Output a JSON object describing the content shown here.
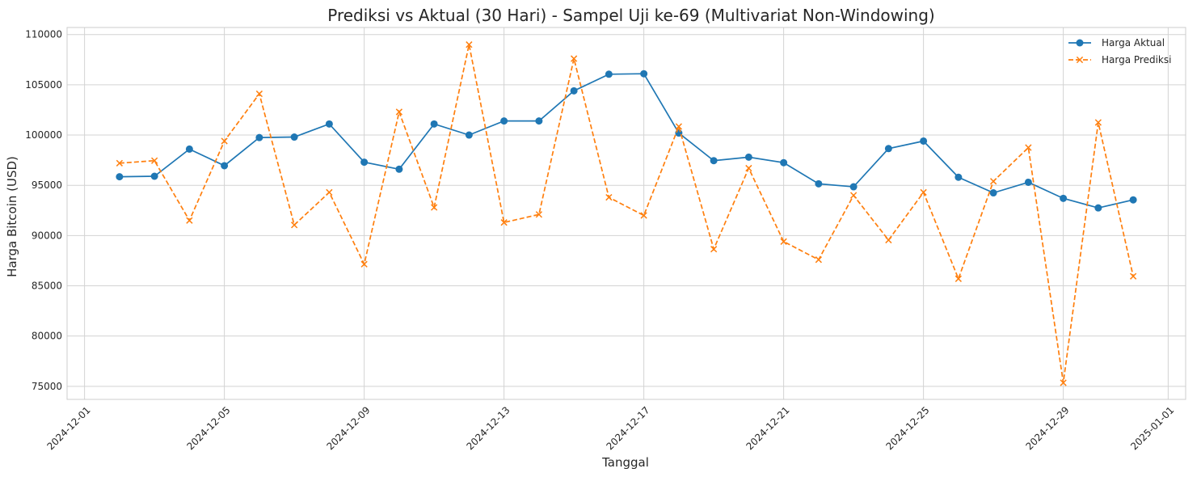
{
  "chart_data": {
    "type": "line",
    "title": "Prediksi vs Aktual (30 Hari) - Sampel Uji ke-69 (Multivariat Non-Windowing)",
    "xlabel": "Tanggal",
    "ylabel": "Harga Bitcoin (USD)",
    "x": [
      "2024-12-02",
      "2024-12-03",
      "2024-12-04",
      "2024-12-05",
      "2024-12-06",
      "2024-12-07",
      "2024-12-08",
      "2024-12-09",
      "2024-12-10",
      "2024-12-11",
      "2024-12-12",
      "2024-12-13",
      "2024-12-14",
      "2024-12-15",
      "2024-12-16",
      "2024-12-17",
      "2024-12-18",
      "2024-12-19",
      "2024-12-20",
      "2024-12-21",
      "2024-12-22",
      "2024-12-23",
      "2024-12-24",
      "2024-12-25",
      "2024-12-26",
      "2024-12-27",
      "2024-12-28",
      "2024-12-29",
      "2024-12-30",
      "2024-12-31"
    ],
    "xlim": [
      "2024-11-30T12:00",
      "2025-01-01T12:00"
    ],
    "x_ticks": [
      "2024-12-01",
      "2024-12-05",
      "2024-12-09",
      "2024-12-13",
      "2024-12-17",
      "2024-12-21",
      "2024-12-25",
      "2024-12-29",
      "2025-01-01"
    ],
    "ylim": [
      73700,
      110700
    ],
    "y_ticks": [
      75000,
      80000,
      85000,
      90000,
      95000,
      100000,
      105000,
      110000
    ],
    "grid": true,
    "legend_position": "top-right",
    "series": [
      {
        "name": "Harga Aktual",
        "color": "#1f77b4",
        "marker": "circle",
        "linestyle": "solid",
        "values": [
          95850,
          95900,
          98600,
          96950,
          99750,
          99800,
          101100,
          97300,
          96600,
          101100,
          100000,
          101400,
          101400,
          104400,
          106050,
          106100,
          100200,
          97450,
          97800,
          97250,
          95150,
          94850,
          98650,
          99400,
          95800,
          94250,
          95300,
          93700,
          92750,
          93550
        ]
      },
      {
        "name": "Harga Prediksi",
        "color": "#ff7f0e",
        "marker": "x",
        "linestyle": "dashed",
        "values": [
          97200,
          97450,
          91500,
          99400,
          104100,
          91050,
          94300,
          87150,
          102300,
          92800,
          109000,
          91300,
          92100,
          107600,
          93800,
          92000,
          100850,
          88650,
          96700,
          89400,
          87600,
          94000,
          89550,
          94300,
          85700,
          95400,
          98750,
          75350,
          101250,
          85950
        ]
      }
    ]
  }
}
